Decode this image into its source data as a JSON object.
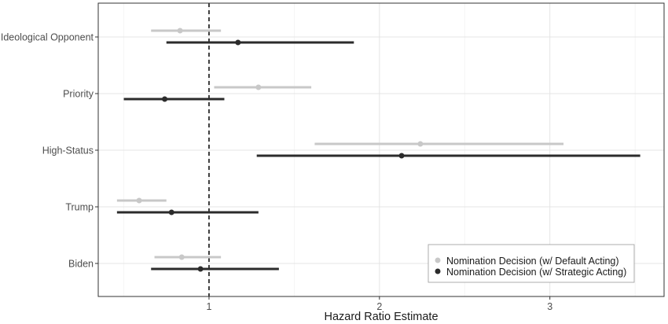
{
  "chart_data": {
    "type": "scatter",
    "subtype": "forest-plot",
    "title": "",
    "xlabel": "Hazard Ratio Estimate",
    "ylabel": "",
    "xlim": [
      0.35,
      3.67
    ],
    "xticks": [
      1,
      2,
      3
    ],
    "reference_line": {
      "x": 1,
      "style": "dashed"
    },
    "grid": true,
    "legend_position": "bottom-right",
    "categories": [
      "Ideological Opponent",
      "Priority",
      "High-Status",
      "Trump",
      "Biden"
    ],
    "series": [
      {
        "name": "Nomination Decision (w/ Default Acting)",
        "color": "#c8c8c8",
        "estimate": [
          0.83,
          1.29,
          2.24,
          0.59,
          0.84
        ],
        "lower": [
          0.66,
          1.03,
          1.62,
          0.46,
          0.68
        ],
        "upper": [
          1.07,
          1.6,
          3.08,
          0.75,
          1.07
        ]
      },
      {
        "name": "Nomination Decision (w/ Strategic Acting)",
        "color": "#2b2b2b",
        "estimate": [
          1.17,
          0.74,
          2.13,
          0.78,
          0.95
        ],
        "lower": [
          0.75,
          0.5,
          1.28,
          0.46,
          0.66
        ],
        "upper": [
          1.85,
          1.09,
          3.53,
          1.29,
          1.41
        ]
      }
    ]
  }
}
